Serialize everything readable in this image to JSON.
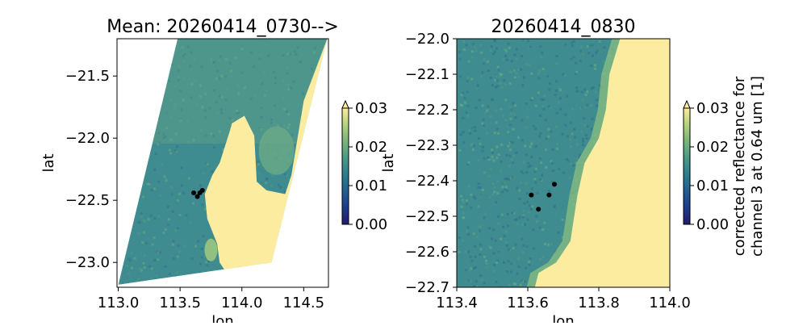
{
  "colors": {
    "land": "#fbeca0",
    "sea": "#3f8c90",
    "sea_light": "#6aaa86",
    "sea_dark": "#2b6f8c",
    "swath_bg": "#ffffff",
    "points": "#000000",
    "cmap": [
      "#271a6b",
      "#1b3b8a",
      "#235f91",
      "#2e7d8e",
      "#4a9a86",
      "#79b57a",
      "#b5d27c",
      "#fbeca0"
    ]
  },
  "chart_data": [
    {
      "type": "heatmap",
      "title": "Mean: 20260414_0730-->",
      "xlabel": "lon",
      "ylabel": "lat",
      "xlim": [
        112.99,
        114.7
      ],
      "ylim": [
        -23.2,
        -21.2
      ],
      "xticks": [
        113.0,
        113.5,
        114.0,
        114.5
      ],
      "xtick_labels": [
        "113.0",
        "113.5",
        "114.0",
        "114.5"
      ],
      "yticks": [
        -21.5,
        -22.0,
        -22.5,
        -23.0
      ],
      "ytick_labels": [
        "−21.5",
        "−22.0",
        "−22.5",
        "−23.0"
      ],
      "swath": [
        [
          113.0,
          -23.18
        ],
        [
          114.24,
          -23.0
        ],
        [
          114.69,
          -21.2
        ],
        [
          113.48,
          -21.2
        ]
      ],
      "points": [
        [
          113.61,
          -22.44
        ],
        [
          113.64,
          -22.47
        ],
        [
          113.66,
          -22.44
        ],
        [
          113.68,
          -22.42
        ]
      ],
      "colorbar": {
        "vmin": 0.0,
        "vmax": 0.03,
        "extend": "max",
        "ticks": [
          0.0,
          0.01,
          0.02,
          0.03
        ],
        "tick_labels": [
          "0.00",
          "0.01",
          "0.02",
          "0.03"
        ],
        "label": ""
      }
    },
    {
      "type": "heatmap",
      "title": "20260414_0830",
      "xlabel": "lon",
      "ylabel": "lat",
      "xlim": [
        113.4,
        114.0
      ],
      "ylim": [
        -22.7,
        -22.0
      ],
      "xticks": [
        113.4,
        113.6,
        113.8,
        114.0
      ],
      "xtick_labels": [
        "113.4",
        "113.6",
        "113.8",
        "114.0"
      ],
      "yticks": [
        -22.0,
        -22.1,
        -22.2,
        -22.3,
        -22.4,
        -22.5,
        -22.6,
        -22.7
      ],
      "ytick_labels": [
        "−22.0",
        "−22.1",
        "−22.2",
        "−22.3",
        "−22.4",
        "−22.5",
        "−22.6",
        "−22.7"
      ],
      "points": [
        [
          113.61,
          -22.44
        ],
        [
          113.63,
          -22.48
        ],
        [
          113.66,
          -22.44
        ],
        [
          113.675,
          -22.41
        ]
      ],
      "colorbar": {
        "vmin": 0.0,
        "vmax": 0.03,
        "extend": "max",
        "ticks": [
          0.0,
          0.01,
          0.02,
          0.03
        ],
        "tick_labels": [
          "0.00",
          "0.01",
          "0.02",
          "0.03"
        ],
        "label_lines": [
          "corrected reflectance for",
          "channel 3 at 0.64 um [1]"
        ]
      }
    }
  ]
}
